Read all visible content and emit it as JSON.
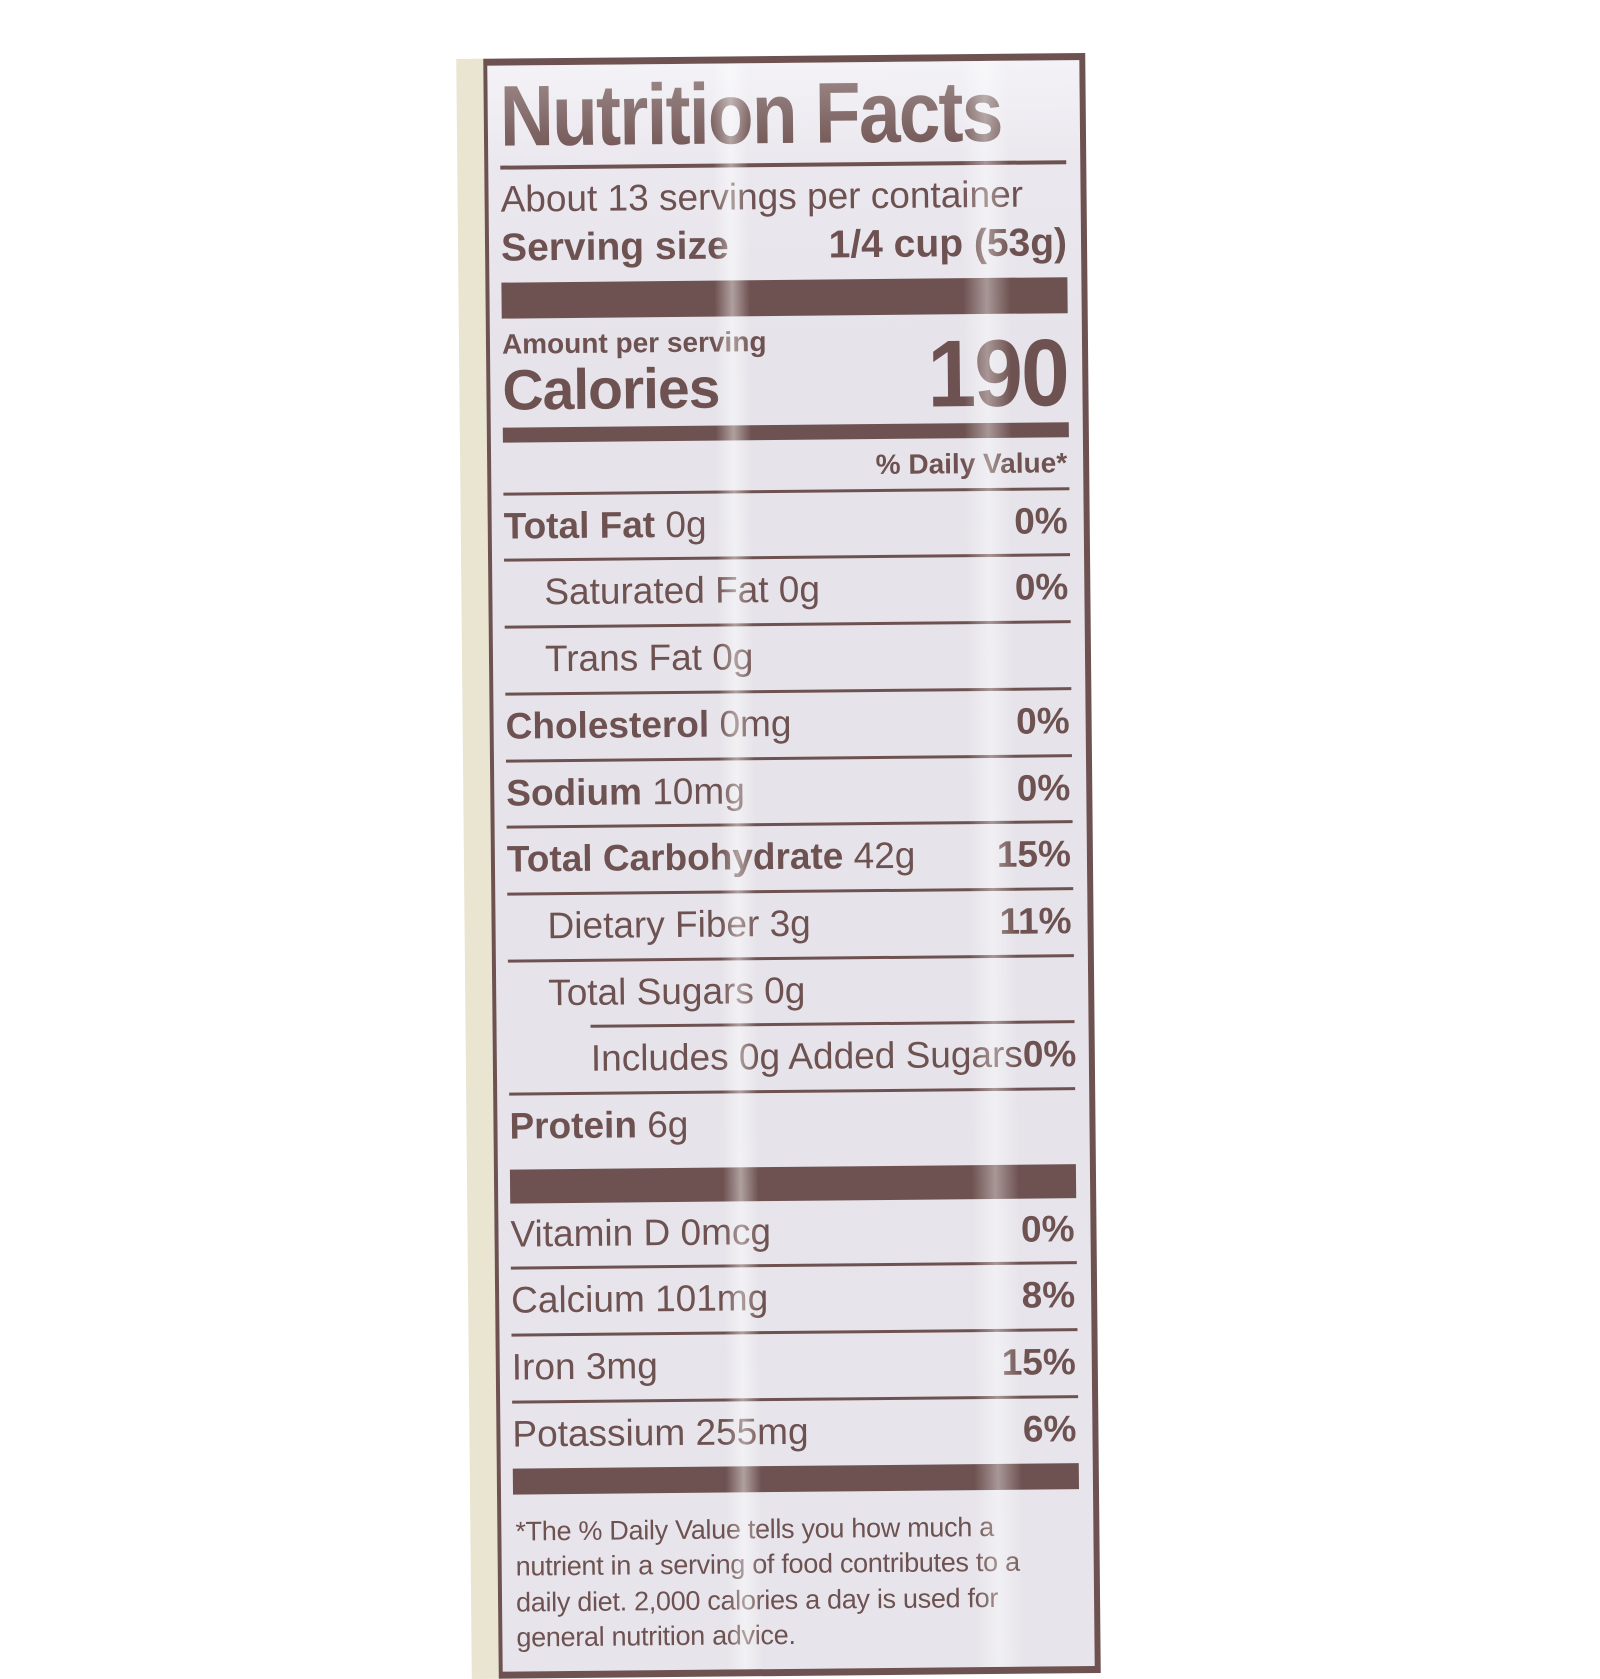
{
  "label": {
    "title": "Nutrition Facts",
    "servings_per_container": "About 13 servings per container",
    "serving_size_label": "Serving size",
    "serving_size_value": "1/4 cup (53g)",
    "amount_per_serving": "Amount per serving",
    "calories_label": "Calories",
    "calories_value": "190",
    "daily_value_header": "% Daily Value*",
    "nutrient_rows": [
      {
        "name": "Total Fat",
        "amount": "0g",
        "dv": "0%",
        "bold": true,
        "indent": 0,
        "sep_indent": false
      },
      {
        "name": "Saturated Fat",
        "amount": "0g",
        "dv": "0%",
        "bold": false,
        "indent": 1,
        "sep_indent": false
      },
      {
        "name": "Trans Fat",
        "amount": "0g",
        "dv": "",
        "bold": false,
        "indent": 1,
        "sep_indent": false
      },
      {
        "name": "Cholesterol",
        "amount": "0mg",
        "dv": "0%",
        "bold": true,
        "indent": 0,
        "sep_indent": false
      },
      {
        "name": "Sodium",
        "amount": "10mg",
        "dv": "0%",
        "bold": true,
        "indent": 0,
        "sep_indent": false
      },
      {
        "name": "Total Carbohydrate",
        "amount": "42g",
        "dv": "15%",
        "bold": true,
        "indent": 0,
        "sep_indent": false
      },
      {
        "name": "Dietary Fiber",
        "amount": "3g",
        "dv": "11%",
        "bold": false,
        "indent": 1,
        "sep_indent": false
      },
      {
        "name": "Total Sugars",
        "amount": "0g",
        "dv": "",
        "bold": false,
        "indent": 1,
        "sep_indent": false
      },
      {
        "name": "Includes 0g Added Sugars",
        "amount": "",
        "dv": "0%",
        "bold": false,
        "indent": 2,
        "sep_indent": true
      },
      {
        "name": "Protein",
        "amount": "6g",
        "dv": "",
        "bold": true,
        "indent": 0,
        "sep_indent": false
      }
    ],
    "micronutrient_rows": [
      {
        "name": "Vitamin D",
        "amount": "0mcg",
        "dv": "0%"
      },
      {
        "name": "Calcium",
        "amount": "101mg",
        "dv": "8%"
      },
      {
        "name": "Iron",
        "amount": "3mg",
        "dv": "15%"
      },
      {
        "name": "Potassium",
        "amount": "255mg",
        "dv": "6%"
      }
    ],
    "footnote": "*The % Daily Value tells you how much a nutrient in a serving of food contributes to a daily diet. 2,000 calories a day is used for general nutrition advice."
  },
  "colors": {
    "accent": "#6e5251",
    "label_background": "#e7e5eb",
    "package_edge": "#e9e5d1",
    "page_background": "#ffffff"
  }
}
